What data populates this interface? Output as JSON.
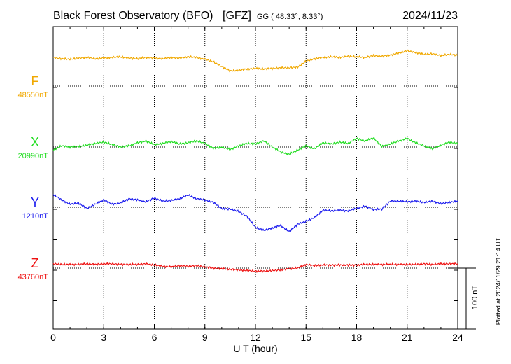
{
  "header": {
    "station": "Black Forest Observatory (BFO)",
    "institute": "[GFZ]",
    "coords": "GG ( 48.33°,   8.33°)",
    "date": "2024/11/23"
  },
  "plotted_note": "Plotted at 2024/11/29 21:14 UT",
  "scale_label": "100 nT",
  "chart_data": {
    "type": "line",
    "title": "Black Forest Observatory (BFO)",
    "xlabel": "U T (hour)",
    "ylabel": "",
    "xlim": [
      0,
      24
    ],
    "x_ticks": [
      "0",
      "3",
      "6",
      "9",
      "12",
      "15",
      "18",
      "21",
      "24"
    ],
    "y_scale_nT_per_division": 100,
    "grid": true,
    "series": [
      {
        "name": "F",
        "baseline_label": "48550nT",
        "baseline_nT": 48550,
        "color": "#f0a800",
        "x": [
          0,
          0.5,
          1,
          1.5,
          2,
          2.5,
          3,
          3.5,
          4,
          4.5,
          5,
          5.5,
          6,
          6.5,
          7,
          7.5,
          8,
          8.5,
          9,
          9.5,
          10,
          10.5,
          11,
          11.5,
          12,
          12.5,
          13,
          13.5,
          14,
          14.5,
          15,
          15.5,
          16,
          16.5,
          17,
          17.5,
          18,
          18.5,
          19,
          19.5,
          20,
          20.5,
          21,
          21.5,
          22,
          22.5,
          23,
          23.5,
          24
        ],
        "y": [
          47,
          45,
          44,
          46,
          47,
          45,
          46,
          47,
          48,
          46,
          45,
          47,
          46,
          45,
          47,
          46,
          48,
          47,
          44,
          40,
          32,
          25,
          26,
          28,
          29,
          28,
          29,
          30,
          30,
          31,
          41,
          45,
          47,
          48,
          47,
          49,
          48,
          47,
          50,
          49,
          51,
          54,
          58,
          55,
          52,
          53,
          50,
          52,
          51
        ]
      },
      {
        "name": "X",
        "baseline_label": "20990nT",
        "baseline_nT": 20990,
        "color": "#22dd22",
        "x": [
          0,
          0.5,
          1,
          1.5,
          2,
          2.5,
          3,
          3.5,
          4,
          4.5,
          5,
          5.5,
          6,
          6.5,
          7,
          7.5,
          8,
          8.5,
          9,
          9.5,
          10,
          10.5,
          11,
          11.5,
          12,
          12.5,
          13,
          13.5,
          14,
          14.5,
          15,
          15.5,
          16,
          16.5,
          17,
          17.5,
          18,
          18.5,
          19,
          19.5,
          20,
          20.5,
          21,
          21.5,
          22,
          22.5,
          23,
          23.5,
          24
        ],
        "y": [
          -5,
          2,
          0,
          1,
          3,
          6,
          8,
          4,
          0,
          2,
          7,
          10,
          4,
          6,
          9,
          5,
          7,
          10,
          6,
          -2,
          0,
          -4,
          2,
          6,
          5,
          10,
          0,
          -8,
          -12,
          -5,
          2,
          -3,
          7,
          5,
          8,
          6,
          14,
          10,
          15,
          1,
          5,
          10,
          14,
          7,
          2,
          -3,
          3,
          8,
          6
        ]
      },
      {
        "name": "Y",
        "baseline_label": "1210nT",
        "baseline_nT": 1210,
        "color": "#1a1aee",
        "x": [
          0,
          0.5,
          1,
          1.5,
          2,
          2.5,
          3,
          3.5,
          4,
          4.5,
          5,
          5.5,
          6,
          6.5,
          7,
          7.5,
          8,
          8.5,
          9,
          9.5,
          10,
          10.5,
          11,
          11.5,
          12,
          12.5,
          13,
          13.5,
          14,
          14.5,
          15,
          15.5,
          16,
          16.5,
          17,
          17.5,
          18,
          18.5,
          19,
          19.5,
          20,
          20.5,
          21,
          21.5,
          22,
          22.5,
          23,
          23.5,
          24
        ],
        "y": [
          21,
          12,
          5,
          7,
          -2,
          5,
          12,
          5,
          7,
          14,
          12,
          9,
          15,
          10,
          11,
          14,
          20,
          14,
          12,
          8,
          -2,
          -3,
          -7,
          -15,
          -33,
          -38,
          -34,
          -30,
          -40,
          -28,
          -23,
          -17,
          -5,
          -6,
          -5,
          -6,
          -2,
          2,
          -4,
          -3,
          10,
          10,
          9,
          10,
          8,
          10,
          6,
          8,
          10
        ]
      },
      {
        "name": "Z",
        "baseline_label": "43760nT",
        "baseline_nT": 43760,
        "color": "#ee1111",
        "x": [
          0,
          0.5,
          1,
          1.5,
          2,
          2.5,
          3,
          3.5,
          4,
          4.5,
          5,
          5.5,
          6,
          6.5,
          7,
          7.5,
          8,
          8.5,
          9,
          9.5,
          10,
          10.5,
          11,
          11.5,
          12,
          12.5,
          13,
          13.5,
          14,
          14.5,
          15,
          15.5,
          16,
          16.5,
          17,
          17.5,
          18,
          18.5,
          19,
          19.5,
          20,
          20.5,
          21,
          21.5,
          22,
          22.5,
          23,
          23.5,
          24
        ],
        "y": [
          7,
          6,
          6,
          6,
          7,
          6,
          7,
          7,
          6,
          6,
          6,
          7,
          5,
          3,
          2,
          4,
          3,
          4,
          2,
          0,
          -1,
          -2,
          -3,
          -4,
          -5,
          -5,
          -4,
          -3,
          -1,
          0,
          6,
          4,
          5,
          5,
          5,
          5,
          5,
          6,
          6,
          6,
          6,
          6,
          6,
          6,
          7,
          6,
          7,
          7,
          7
        ]
      }
    ]
  }
}
